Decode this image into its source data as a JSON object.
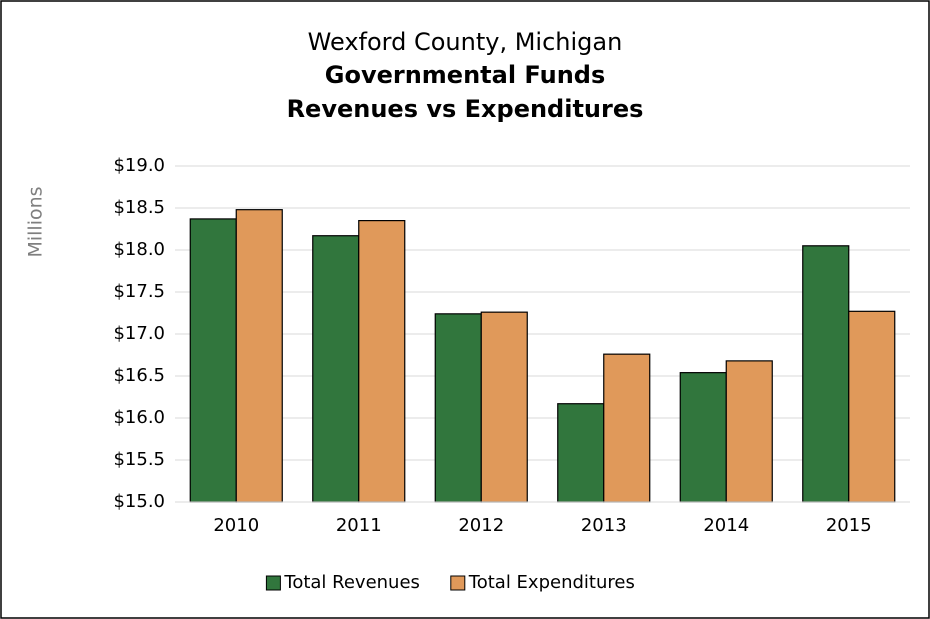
{
  "chart_data": {
    "type": "bar",
    "title": [
      "Wexford County, Michigan",
      "Governmental Funds",
      "Revenues vs Expenditures"
    ],
    "y_label": "Millions",
    "categories": [
      "2010",
      "2011",
      "2012",
      "2013",
      "2014",
      "2015"
    ],
    "series": [
      {
        "name": "Total Revenues",
        "color": "#31763d",
        "values": [
          18.37,
          18.17,
          17.24,
          16.17,
          16.54,
          18.05
        ]
      },
      {
        "name": "Total Expenditures",
        "color": "#e0995a",
        "values": [
          18.48,
          18.35,
          17.26,
          16.76,
          16.68,
          17.27
        ]
      }
    ],
    "ylim": [
      15,
      19
    ],
    "yticks": [
      {
        "value": 15,
        "label": "$15.0"
      },
      {
        "value": 15.5,
        "label": "$15.5"
      },
      {
        "value": 16,
        "label": "$16.0"
      },
      {
        "value": 16.5,
        "label": "$16.5"
      },
      {
        "value": 17,
        "label": "$17.0"
      },
      {
        "value": 17.5,
        "label": "$17.5"
      },
      {
        "value": 18,
        "label": "$18.0"
      },
      {
        "value": 18.5,
        "label": "$18.5"
      },
      {
        "value": 19,
        "label": "$19.0"
      }
    ],
    "grid": true,
    "legend": "bottom"
  }
}
